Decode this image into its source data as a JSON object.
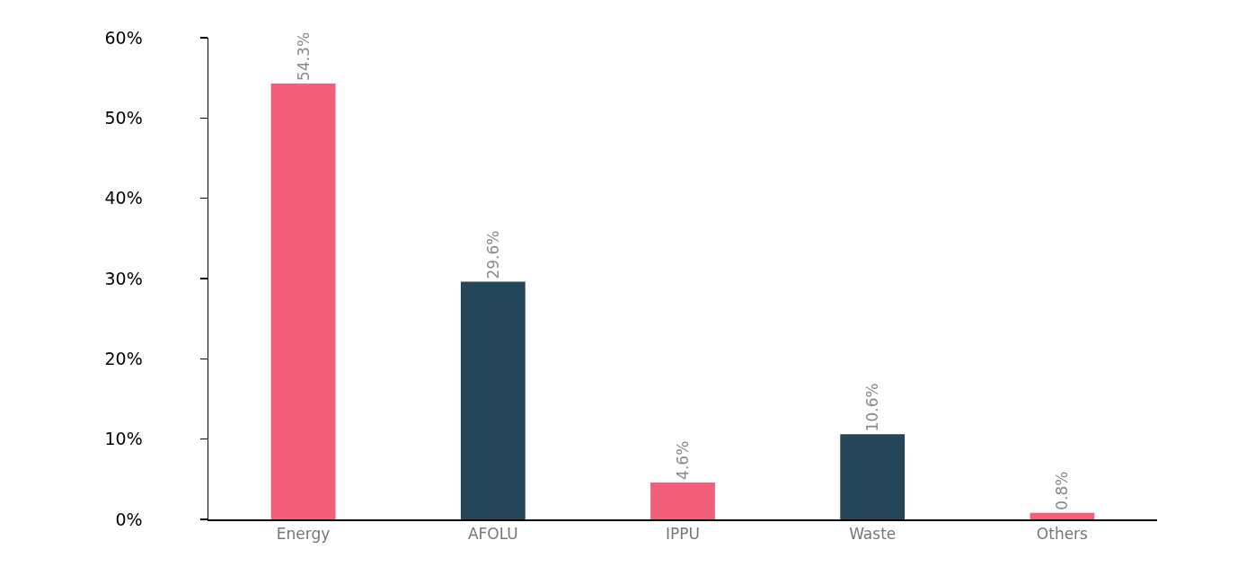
{
  "chart_data": {
    "type": "bar",
    "categories": [
      "Energy",
      "AFOLU",
      "IPPU",
      "Waste",
      "Others"
    ],
    "values": [
      54.3,
      29.6,
      4.6,
      10.6,
      0.8
    ],
    "value_labels": [
      "54.3%",
      "29.6%",
      "4.6%",
      "10.6%",
      "0.8%"
    ],
    "colors": [
      "#f25f7a",
      "#244658",
      "#f25f7a",
      "#244658",
      "#f25f7a"
    ],
    "ylim": [
      0,
      60
    ],
    "yticks": [
      {
        "value": 0,
        "label": "0%"
      },
      {
        "value": 10,
        "label": "10%"
      },
      {
        "value": 20,
        "label": "20%"
      },
      {
        "value": 30,
        "label": "30%"
      },
      {
        "value": 40,
        "label": "40%"
      },
      {
        "value": 50,
        "label": "50%"
      },
      {
        "value": 60,
        "label": "60%"
      }
    ],
    "grid": false
  }
}
